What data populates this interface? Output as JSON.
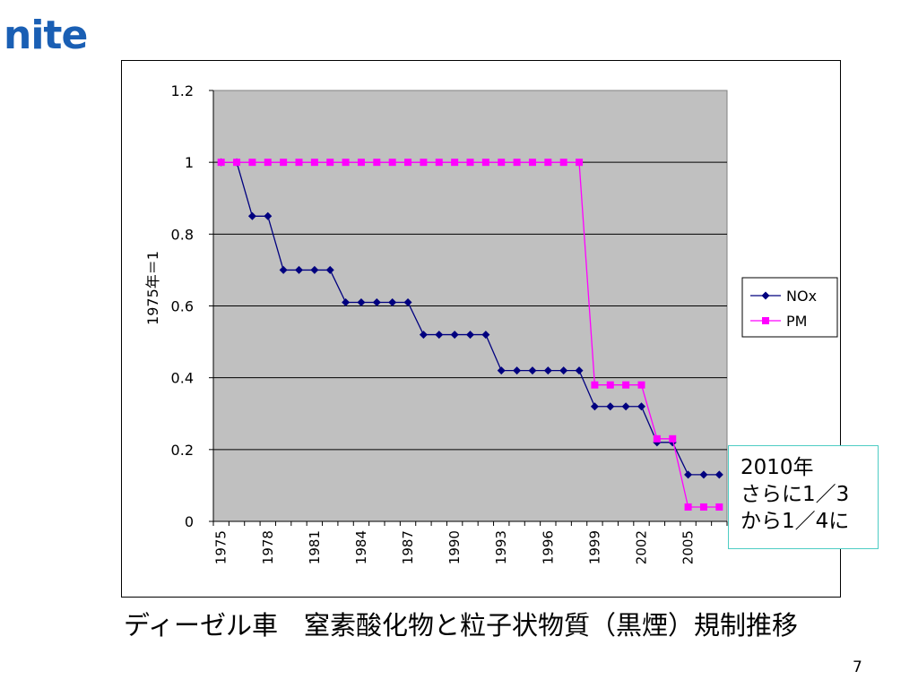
{
  "logo": "nite",
  "caption": "ディーゼル車　窒素酸化物と粒子状物質（黒煙）規制推移",
  "page_number": "7",
  "note_lines": [
    "2010年",
    "さらに1／3",
    "から1／4に"
  ],
  "colors": {
    "nox": "#00007f",
    "pm": "#ff00ff",
    "plot_bg": "#c0c0c0",
    "note_border": "#4ecdc4",
    "logo": "#1a5fb4"
  },
  "chart_data": {
    "type": "line",
    "ylabel": "1975年＝1",
    "ylim": [
      0,
      1.2
    ],
    "yticks": [
      "0",
      "0.2",
      "0.4",
      "0.6",
      "0.8",
      "1",
      "1.2"
    ],
    "xtick_labels": [
      "1975",
      "1978",
      "1981",
      "1984",
      "1987",
      "1990",
      "1993",
      "1996",
      "1999",
      "2002",
      "2005"
    ],
    "x": [
      1975,
      1976,
      1977,
      1978,
      1979,
      1980,
      1981,
      1982,
      1983,
      1984,
      1985,
      1986,
      1987,
      1988,
      1989,
      1990,
      1991,
      1992,
      1993,
      1994,
      1995,
      1996,
      1997,
      1998,
      1999,
      2000,
      2001,
      2002,
      2003,
      2004,
      2005,
      2006,
      2007
    ],
    "series": [
      {
        "name": "NOx",
        "marker": "diamond",
        "values": [
          1,
          1,
          0.85,
          0.85,
          0.7,
          0.7,
          0.7,
          0.7,
          0.61,
          0.61,
          0.61,
          0.61,
          0.61,
          0.52,
          0.52,
          0.52,
          0.52,
          0.52,
          0.42,
          0.42,
          0.42,
          0.42,
          0.42,
          0.42,
          0.32,
          0.32,
          0.32,
          0.32,
          0.22,
          0.22,
          0.13,
          0.13,
          0.13
        ]
      },
      {
        "name": "PM",
        "marker": "square",
        "values": [
          1,
          1,
          1,
          1,
          1,
          1,
          1,
          1,
          1,
          1,
          1,
          1,
          1,
          1,
          1,
          1,
          1,
          1,
          1,
          1,
          1,
          1,
          1,
          1,
          0.38,
          0.38,
          0.38,
          0.38,
          0.23,
          0.23,
          0.04,
          0.04,
          0.04
        ]
      }
    ],
    "grid": true,
    "legend": "right"
  }
}
